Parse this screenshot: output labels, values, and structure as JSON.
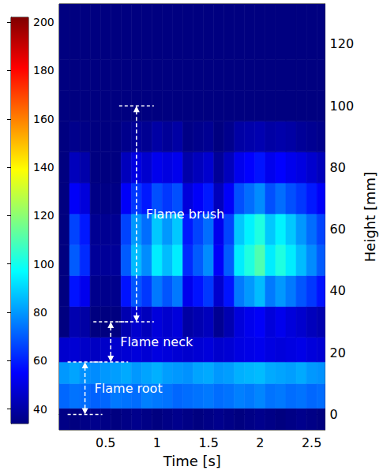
{
  "chart_data": {
    "type": "heatmap",
    "x_label": "Time [s]",
    "y_label": "Height [mm]",
    "xlim": [
      0.05,
      2.63
    ],
    "xticks": [
      0.5,
      1,
      1.5,
      2,
      2.5
    ],
    "ylim": [
      -5,
      133
    ],
    "yticks": [
      0,
      20,
      40,
      60,
      80,
      100,
      120
    ],
    "grid": false,
    "time_bins": [
      0.05,
      0.15,
      0.25,
      0.35,
      0.45,
      0.55,
      0.65,
      0.75,
      0.85,
      0.95,
      1.05,
      1.15,
      1.25,
      1.35,
      1.45,
      1.55,
      1.65,
      1.75,
      1.85,
      1.95,
      2.05,
      2.15,
      2.25,
      2.35,
      2.45,
      2.55,
      2.65
    ],
    "height_bins": [
      -5,
      2,
      10,
      17,
      25,
      35,
      45,
      55,
      65,
      75,
      85,
      95,
      105,
      115,
      133
    ],
    "cells": [
      [
        35,
        34,
        35,
        36,
        35,
        34,
        35,
        36,
        35,
        34,
        35,
        36,
        35,
        34,
        35,
        36,
        35,
        34,
        35,
        36,
        35,
        34,
        35,
        36,
        35,
        34
      ],
      [
        72,
        74,
        73,
        71,
        72,
        75,
        74,
        73,
        76,
        75,
        74,
        72,
        73,
        74,
        75,
        73,
        74,
        76,
        75,
        77,
        74,
        75,
        73,
        74,
        72,
        73
      ],
      [
        80,
        82,
        79,
        78,
        80,
        81,
        83,
        80,
        82,
        84,
        81,
        80,
        79,
        82,
        83,
        80,
        81,
        84,
        85,
        86,
        83,
        82,
        81,
        83,
        80,
        79
      ],
      [
        47,
        48,
        46,
        45,
        46,
        47,
        48,
        49,
        48,
        50,
        49,
        48,
        47,
        48,
        49,
        47,
        48,
        50,
        51,
        52,
        50,
        49,
        50,
        51,
        49,
        48
      ],
      [
        30,
        42,
        40,
        32,
        32,
        32,
        42,
        47,
        44,
        49,
        47,
        49,
        40,
        42,
        44,
        37,
        42,
        49,
        52,
        54,
        49,
        52,
        49,
        47,
        44,
        42
      ],
      [
        30,
        58,
        52,
        36,
        36,
        36,
        58,
        69,
        64,
        75,
        69,
        75,
        52,
        58,
        64,
        47,
        58,
        75,
        80,
        86,
        75,
        80,
        75,
        69,
        64,
        58
      ],
      [
        30,
        70,
        62,
        38,
        38,
        38,
        70,
        86,
        78,
        94,
        86,
        94,
        62,
        70,
        78,
        54,
        70,
        94,
        102,
        110,
        94,
        102,
        94,
        86,
        78,
        70
      ],
      [
        30,
        66,
        59,
        37,
        37,
        37,
        66,
        80,
        73,
        88,
        80,
        88,
        59,
        66,
        73,
        52,
        66,
        88,
        95,
        102,
        88,
        95,
        88,
        80,
        73,
        66
      ],
      [
        30,
        54,
        49,
        35,
        35,
        35,
        54,
        64,
        59,
        68,
        64,
        68,
        49,
        54,
        59,
        44,
        54,
        68,
        73,
        78,
        68,
        73,
        68,
        64,
        59,
        54
      ],
      [
        30,
        44,
        41,
        33,
        33,
        33,
        44,
        50,
        47,
        52,
        50,
        52,
        41,
        44,
        47,
        38,
        44,
        52,
        55,
        58,
        52,
        55,
        52,
        50,
        47,
        44
      ],
      [
        30,
        36,
        35,
        31,
        31,
        31,
        36,
        38,
        37,
        40,
        38,
        40,
        35,
        36,
        37,
        34,
        36,
        40,
        41,
        42,
        40,
        41,
        40,
        38,
        37,
        36
      ],
      [
        30,
        32,
        31,
        30,
        30,
        30,
        32,
        33,
        32,
        33,
        33,
        33,
        31,
        32,
        32,
        31,
        32,
        33,
        33,
        34,
        33,
        33,
        33,
        33,
        32,
        32
      ],
      [
        30,
        30,
        31,
        30,
        30,
        30,
        30,
        31,
        30,
        31,
        30,
        31,
        30,
        30,
        31,
        30,
        30,
        31,
        31,
        31,
        30,
        31,
        30,
        31,
        30,
        30
      ],
      [
        29,
        30,
        29,
        30,
        29,
        30,
        29,
        30,
        29,
        30,
        29,
        30,
        29,
        30,
        29,
        30,
        29,
        30,
        29,
        30,
        29,
        30,
        29,
        30,
        29,
        30
      ]
    ],
    "colorbar": {
      "range": [
        34,
        202
      ],
      "ticks": [
        40,
        60,
        80,
        100,
        120,
        140,
        160,
        180,
        200
      ]
    },
    "annotations": [
      {
        "text": "Flame brush",
        "x": 0.8,
        "y_from": 30,
        "y_to": 100
      },
      {
        "text": "Flame neck",
        "x": 0.55,
        "y_from": 17,
        "y_to": 30
      },
      {
        "text": "Flame root",
        "x": 0.3,
        "y_from": 0,
        "y_to": 17
      }
    ]
  }
}
